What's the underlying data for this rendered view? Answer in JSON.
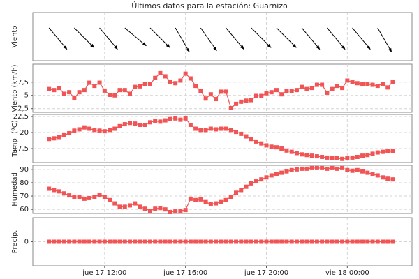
{
  "chart_data": [
    {
      "type": "wind_arrows",
      "title": "Últimos datos para la estación: Guarnizo",
      "ylabel": "Viento",
      "color": "#000000",
      "x": [
        9.25,
        10.5,
        11.75,
        13,
        14.25,
        15.5,
        16.75,
        18,
        19.25,
        20.5,
        21.75,
        23,
        24.25,
        25.5
      ],
      "values": [
        320,
        315,
        320,
        310,
        315,
        330,
        325,
        320,
        315,
        315,
        320,
        320,
        320,
        330
      ],
      "xlim": [
        8.45,
        27.2
      ],
      "grid": true
    },
    {
      "type": "line",
      "ylabel": "Viento (km/h)",
      "color": "#f05454",
      "x": [
        9.25,
        9.5,
        9.75,
        10,
        10.25,
        10.5,
        10.75,
        11,
        11.25,
        11.5,
        11.75,
        12,
        12.25,
        12.5,
        12.75,
        13,
        13.25,
        13.5,
        13.75,
        14,
        14.25,
        14.5,
        14.75,
        15,
        15.25,
        15.5,
        15.75,
        16,
        16.25,
        16.5,
        16.75,
        17,
        17.25,
        17.5,
        17.75,
        18,
        18.25,
        18.5,
        18.75,
        19,
        19.25,
        19.5,
        19.75,
        20,
        20.25,
        20.5,
        20.75,
        21,
        21.25,
        21.5,
        21.75,
        22,
        22.25,
        22.5,
        22.75,
        23,
        23.25,
        23.5,
        23.75,
        24,
        24.25,
        24.5,
        24.75,
        25,
        25.25,
        25.5,
        25.75,
        26,
        26.25
      ],
      "values": [
        6.2,
        6.0,
        6.4,
        5.3,
        5.6,
        4.5,
        5.6,
        6.0,
        7.4,
        6.8,
        7.4,
        5.9,
        5.1,
        5.0,
        6.0,
        6.0,
        5.3,
        6.6,
        6.7,
        7.2,
        7.1,
        8.3,
        9.2,
        8.6,
        7.6,
        7.3,
        7.8,
        9.1,
        8.2,
        6.8,
        5.8,
        4.4,
        5.2,
        4.3,
        5.7,
        5.7,
        2.6,
        3.4,
        3.8,
        4.0,
        4.1,
        4.9,
        4.9,
        5.4,
        5.6,
        6.0,
        5.2,
        5.8,
        5.8,
        6.0,
        6.6,
        6.2,
        6.4,
        7.0,
        7.0,
        5.5,
        6.2,
        6.8,
        6.4,
        7.8,
        7.5,
        7.3,
        7.2,
        7.1,
        7.0,
        6.8,
        7.2,
        6.5,
        7.6
      ],
      "xlim": [
        8.45,
        27.2
      ],
      "ylim": [
        1.8,
        10.9
      ],
      "yticks": [
        {
          "value": 2.5,
          "label": "2,5"
        },
        5,
        {
          "value": 7.5,
          "label": "7,5"
        }
      ],
      "grid": true
    },
    {
      "type": "line",
      "ylabel": "Temp. (ºC)",
      "color": "#f05454",
      "x": [
        9.25,
        9.5,
        9.75,
        10,
        10.25,
        10.5,
        10.75,
        11,
        11.25,
        11.5,
        11.75,
        12,
        12.25,
        12.5,
        12.75,
        13,
        13.25,
        13.5,
        13.75,
        14,
        14.25,
        14.5,
        14.75,
        15,
        15.25,
        15.5,
        15.75,
        16,
        16.25,
        16.5,
        16.75,
        17,
        17.25,
        17.5,
        17.75,
        18,
        18.25,
        18.5,
        18.75,
        19,
        19.25,
        19.5,
        19.75,
        20,
        20.25,
        20.5,
        20.75,
        21,
        21.25,
        21.5,
        21.75,
        22,
        22.25,
        22.5,
        22.75,
        23,
        23.25,
        23.5,
        23.75,
        24,
        24.25,
        24.5,
        24.75,
        25,
        25.25,
        25.5,
        25.75,
        26,
        26.25
      ],
      "values": [
        19.0,
        19.1,
        19.3,
        19.6,
        19.9,
        20.3,
        20.5,
        20.8,
        20.6,
        20.4,
        20.3,
        20.2,
        20.4,
        20.6,
        21.0,
        21.3,
        21.5,
        21.4,
        21.2,
        21.2,
        21.6,
        21.8,
        21.7,
        21.9,
        22.1,
        22.2,
        22.0,
        22.2,
        21.2,
        20.6,
        20.4,
        20.4,
        20.6,
        20.5,
        20.6,
        20.6,
        20.4,
        20.1,
        19.8,
        19.4,
        19.0,
        18.6,
        18.3,
        18.0,
        17.8,
        17.7,
        17.5,
        17.2,
        17.0,
        16.8,
        16.6,
        16.5,
        16.4,
        16.3,
        16.2,
        16.1,
        16.0,
        16.0,
        15.9,
        16.0,
        16.1,
        16.2,
        16.4,
        16.5,
        16.7,
        16.9,
        17.0,
        17.1,
        17.1
      ],
      "xlim": [
        8.45,
        27.2
      ],
      "ylim": [
        15.33,
        22.83
      ],
      "yticks": [
        {
          "value": 17.5,
          "label": "17,5"
        },
        20,
        {
          "value": 22.5,
          "label": "22,5"
        }
      ],
      "grid": true
    },
    {
      "type": "line",
      "ylabel": "Humedad",
      "color": "#f05454",
      "x": [
        9.25,
        9.5,
        9.75,
        10,
        10.25,
        10.5,
        10.75,
        11,
        11.25,
        11.5,
        11.75,
        12,
        12.25,
        12.5,
        12.75,
        13,
        13.25,
        13.5,
        13.75,
        14,
        14.25,
        14.5,
        14.75,
        15,
        15.25,
        15.5,
        15.75,
        16,
        16.25,
        16.5,
        16.75,
        17,
        17.25,
        17.5,
        17.75,
        18,
        18.25,
        18.5,
        18.75,
        19,
        19.25,
        19.5,
        19.75,
        20,
        20.25,
        20.5,
        20.75,
        21,
        21.25,
        21.5,
        21.75,
        22,
        22.25,
        22.5,
        22.75,
        23,
        23.25,
        23.5,
        23.75,
        24,
        24.25,
        24.5,
        24.75,
        25,
        25.25,
        25.5,
        25.75,
        26,
        26.25
      ],
      "values": [
        75.5,
        74.5,
        73.5,
        72,
        70.5,
        69,
        69.5,
        68,
        68.5,
        69.5,
        71,
        69.5,
        67,
        64.5,
        62,
        62,
        63,
        64.5,
        62,
        60.5,
        59,
        60.5,
        61,
        60,
        58,
        58.5,
        59,
        59.5,
        68,
        67,
        67.5,
        65.5,
        64,
        64.5,
        65.5,
        67,
        69.5,
        72.5,
        74.5,
        77,
        79.5,
        81,
        82.5,
        84,
        85.5,
        86.5,
        87.5,
        88.5,
        89.5,
        90,
        90.5,
        90.5,
        91,
        91,
        91,
        90.5,
        91,
        90.5,
        91,
        89.5,
        89,
        89.5,
        88.5,
        87.5,
        86.5,
        85.5,
        84,
        83,
        82.5
      ],
      "xlim": [
        8.45,
        27.2
      ],
      "ylim": [
        56.95,
        93.05
      ],
      "yticks": [
        60,
        70,
        80,
        90
      ],
      "grid": true
    },
    {
      "type": "line",
      "ylabel": "Precip.",
      "color": "#f05454",
      "x": [
        9.25,
        9.5,
        9.75,
        10,
        10.25,
        10.5,
        10.75,
        11,
        11.25,
        11.5,
        11.75,
        12,
        12.25,
        12.5,
        12.75,
        13,
        13.25,
        13.5,
        13.75,
        14,
        14.25,
        14.5,
        14.75,
        15,
        15.25,
        15.5,
        15.75,
        16,
        16.25,
        16.5,
        16.75,
        17,
        17.25,
        17.5,
        17.75,
        18,
        18.25,
        18.5,
        18.75,
        19,
        19.25,
        19.5,
        19.75,
        20,
        20.25,
        20.5,
        20.75,
        21,
        21.25,
        21.5,
        21.75,
        22,
        22.25,
        22.5,
        22.75,
        23,
        23.25,
        23.5,
        23.75,
        24,
        24.25,
        24.5,
        24.75,
        25,
        25.25,
        25.5,
        25.75,
        26,
        26.25
      ],
      "values": [
        0,
        0,
        0,
        0,
        0,
        0,
        0,
        0,
        0,
        0,
        0,
        0,
        0,
        0,
        0,
        0,
        0,
        0,
        0,
        0,
        0,
        0,
        0,
        0,
        0,
        0,
        0,
        0,
        0,
        0,
        0,
        0,
        0,
        0,
        0,
        0,
        0,
        0,
        0,
        0,
        0,
        0,
        0,
        0,
        0,
        0,
        0,
        0,
        0,
        0,
        0,
        0,
        0,
        0,
        0,
        0,
        0,
        0,
        0,
        0,
        0,
        0,
        0,
        0,
        0,
        0,
        0,
        0,
        0
      ],
      "xlim": [
        8.45,
        27.2
      ],
      "ylim": [
        -1,
        1
      ],
      "yticks": [
        0
      ],
      "xticks": [
        {
          "value": 12,
          "label": "jue 17 12:00"
        },
        {
          "value": 16,
          "label": "jue 17 16:00"
        },
        {
          "value": 20,
          "label": "jue 17 20:00"
        },
        {
          "value": 24,
          "label": "vie 18 00:00"
        }
      ],
      "grid": true
    }
  ]
}
